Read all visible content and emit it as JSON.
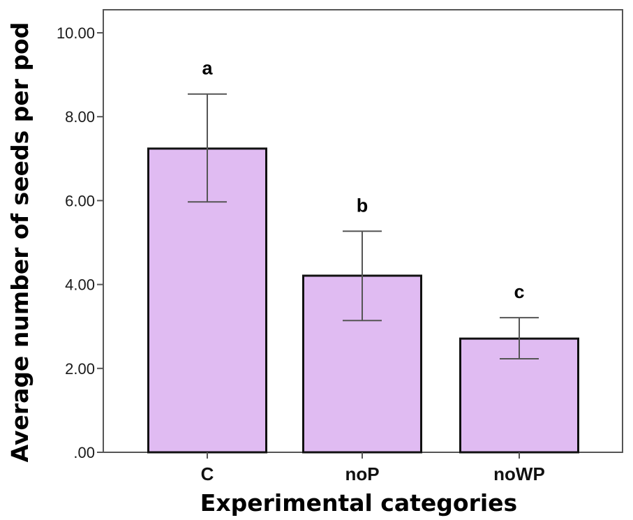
{
  "chart_data": {
    "type": "bar",
    "title": "",
    "xlabel": "Experimental categories",
    "ylabel": "Average number of seeds per pod",
    "categories": [
      "C",
      "noP",
      "noWP"
    ],
    "values": [
      7.24,
      4.21,
      2.71
    ],
    "error_bars": {
      "upper": [
        8.54,
        5.27,
        3.21
      ],
      "lower": [
        5.97,
        3.14,
        2.23
      ]
    },
    "significance_letters": [
      "a",
      "b",
      "c"
    ],
    "ylim": [
      0,
      10.55
    ],
    "yticks": [
      0,
      2,
      4,
      6,
      8,
      10
    ],
    "ytick_labels": [
      ".00",
      "2.00",
      "4.00",
      "6.00",
      "8.00",
      "10.00"
    ],
    "grid": false,
    "legend": "none",
    "colors": {
      "bar_fill": "#e0bbf2",
      "bar_stroke": "#111111",
      "error_bar": "#555555",
      "axis": "#555555"
    }
  }
}
